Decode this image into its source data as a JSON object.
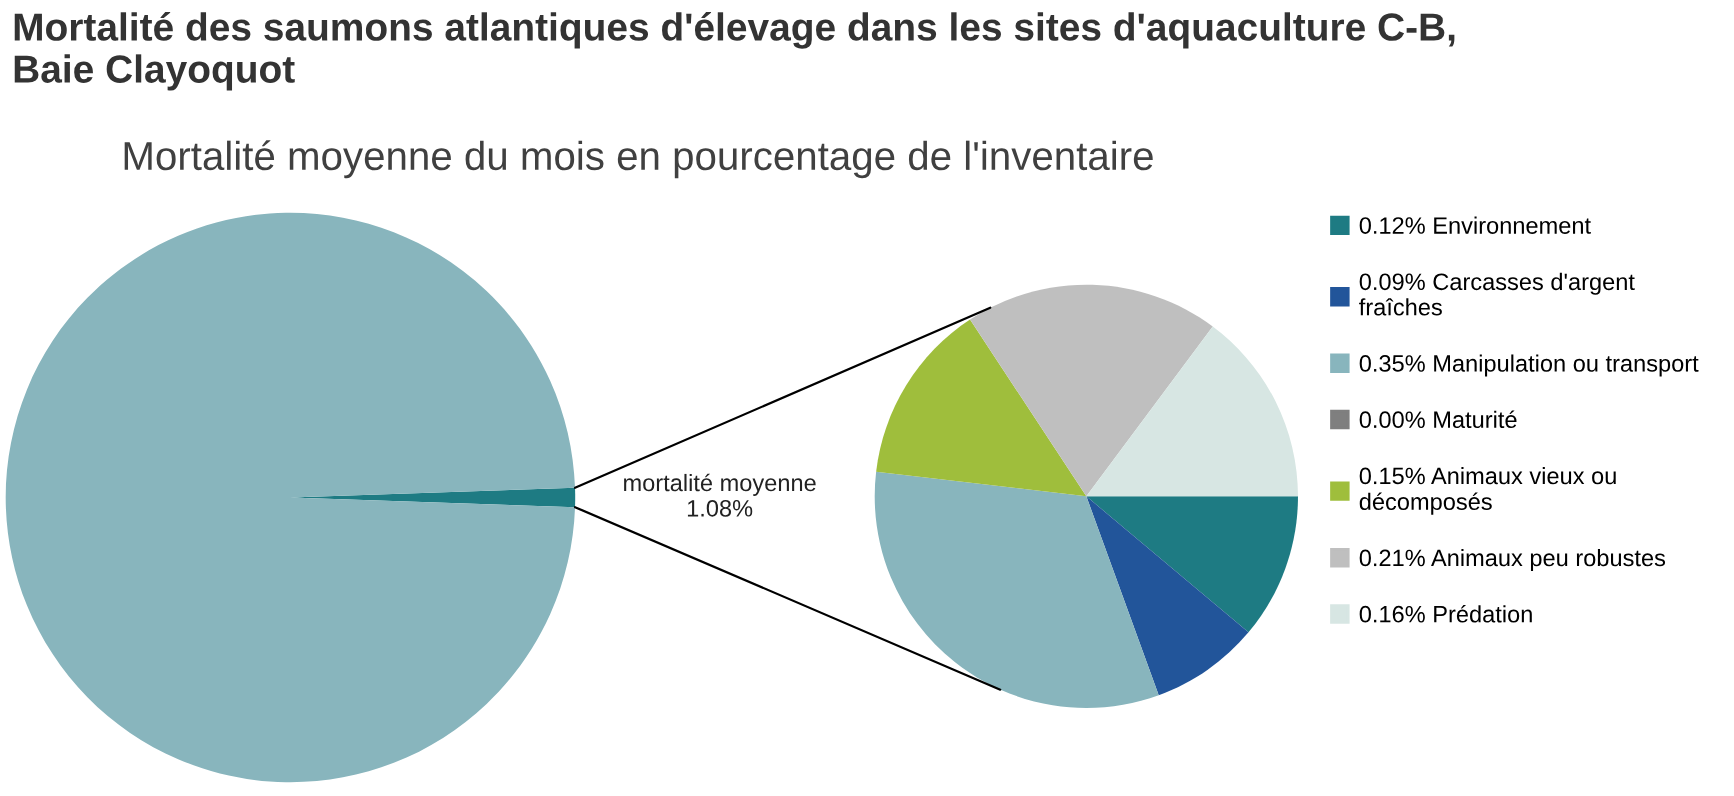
{
  "chart_data": [
    {
      "type": "pie",
      "title": "Mortalité des saumons atlantiques d'élevage dans les sites d'aquaculture C-B,\nBaie Clayoquot",
      "subtitle": "Mortalité moyenne du mois en pourcentage de l'inventaire",
      "categories": [
        "mortalité moyenne\n1.08%",
        null
      ],
      "values": [
        1.08,
        98.92
      ],
      "colors": [
        "#1e7b83",
        "#88b5bd"
      ]
    },
    {
      "type": "pie",
      "categories": [
        "0.12% Environnement",
        "0.09% Carcasses d'argent\nfraîches",
        "0.35% Manipulation ou transport",
        "0.00% Maturité",
        "0.15% Animaux vieux ou\ndécomposés",
        "0.21% Animaux peu robustes",
        "0.16% Prédation"
      ],
      "values": [
        0.12,
        0.09,
        0.35,
        0.0,
        0.15,
        0.21,
        0.16
      ],
      "colors": [
        "#1e7b83",
        "#22559a",
        "#88b5bd",
        "#7f7f7f",
        "#9fbe3c",
        "#bfbfbf",
        "#d7e6e3"
      ],
      "legend": "right"
    }
  ]
}
